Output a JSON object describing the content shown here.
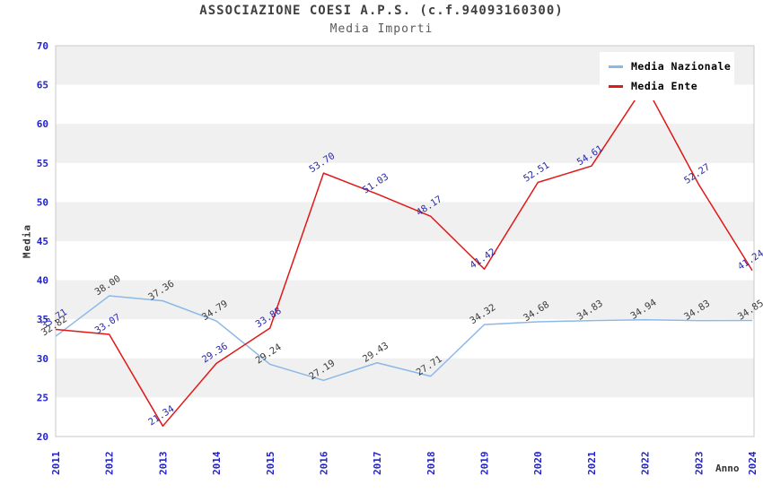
{
  "chart_data": {
    "type": "line",
    "title": "ASSOCIAZIONE COESI A.P.S. (c.f.94093160300)",
    "subtitle": "Media Importi",
    "xlabel": "Anno",
    "ylabel": "Media",
    "ylim": [
      20,
      70
    ],
    "yticks": [
      70,
      65,
      60,
      55,
      50,
      45,
      40,
      35,
      30,
      25,
      20
    ],
    "categories": [
      "2011",
      "2012",
      "2013",
      "2014",
      "2015",
      "2016",
      "2017",
      "2018",
      "2019",
      "2020",
      "2021",
      "2022",
      "2023",
      "2024"
    ],
    "grid": "alternating horizontal bands, gray band at top",
    "legend_position": "top-right, overlapping plot",
    "series": [
      {
        "name": "Media Nazionale",
        "color": "#8cb8e8",
        "label_color": "#3a3a3a",
        "values": [
          32.82,
          38.0,
          37.36,
          34.79,
          29.24,
          27.19,
          29.43,
          27.71,
          34.32,
          34.68,
          34.83,
          34.94,
          34.83,
          34.85
        ],
        "labels": [
          "32.82",
          "38.00",
          "37.36",
          "34.79",
          "29.24",
          "27.19",
          "29.43",
          "27.71",
          "34.32",
          "34.68",
          "34.83",
          "34.94",
          "34.83",
          "34.85"
        ]
      },
      {
        "name": "Media Ente",
        "color": "#e01818",
        "label_color": "#2828aa",
        "values": [
          33.71,
          33.07,
          21.34,
          29.36,
          33.88,
          53.7,
          51.03,
          48.17,
          41.42,
          52.51,
          54.61,
          65.0,
          52.27,
          41.24
        ],
        "labels": [
          "33.71",
          "33.07",
          "21.34",
          "29.36",
          "33.88",
          "53.70",
          "51.03",
          "48.17",
          "41.42",
          "52.51",
          "54.61",
          null,
          "52.27",
          "41.24"
        ]
      }
    ],
    "colors": {
      "tick_label": "#2222cc",
      "band_gray": "#f0f0f0",
      "band_white": "#ffffff",
      "plot_border": "#c8c8c8",
      "title": "#404040",
      "subtitle": "#5a5a5a",
      "axis_title": "#333333",
      "legend_text": "#000000"
    }
  }
}
